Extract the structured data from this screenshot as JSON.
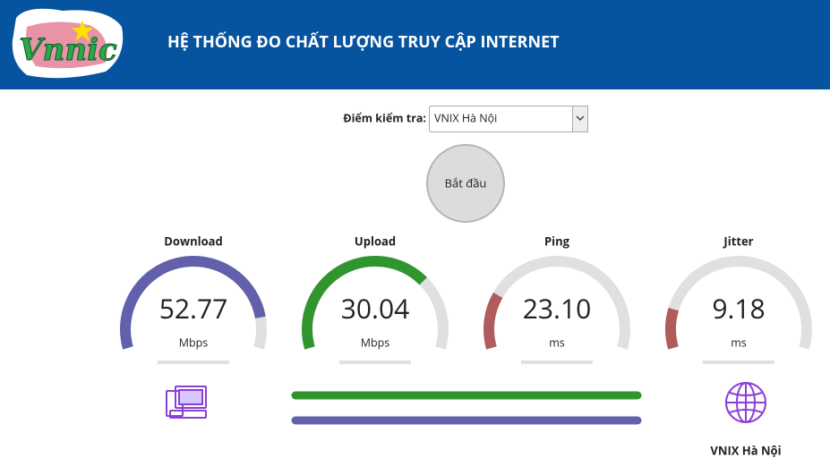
{
  "header": {
    "logo": "Vnnic",
    "title": "HỆ THỐNG ĐO CHẤT LƯỢNG TRUY CẬP INTERNET"
  },
  "selector": {
    "label": "Điểm kiểm tra:",
    "value": "VNIX Hà Nội"
  },
  "button": {
    "label": "Bắt đầu"
  },
  "gauges": [
    {
      "label": "Download",
      "value": "52.77",
      "unit": "Mbps"
    },
    {
      "label": "Upload",
      "value": "30.04",
      "unit": "Mbps"
    },
    {
      "label": "Ping",
      "value": "23.10",
      "unit": "ms"
    },
    {
      "label": "Jitter",
      "value": "9.18",
      "unit": "ms"
    }
  ],
  "server": {
    "label": "VNIX Hà Nội"
  }
}
